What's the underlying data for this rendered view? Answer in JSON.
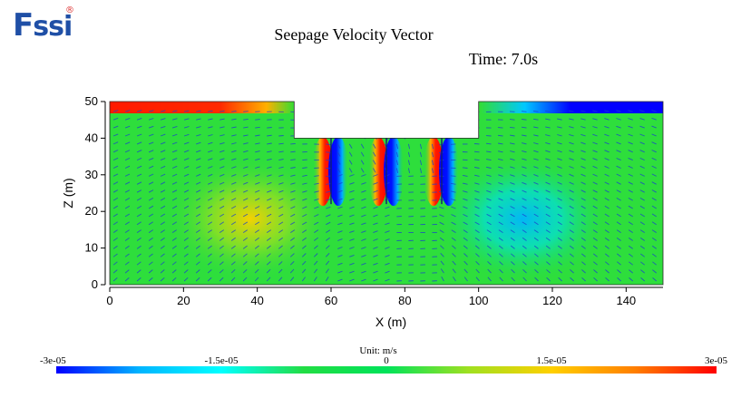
{
  "brand": {
    "logo_f": "F",
    "logo_ssi": "ssi",
    "logo_mark": "®"
  },
  "chart_data": {
    "type": "heatmap",
    "title": "Seepage Velocity Vector",
    "time_label": "Time: 7.0s",
    "xlabel": "X (m)",
    "ylabel": "Z (m)",
    "xlim": [
      0,
      150
    ],
    "ylim": [
      0,
      50
    ],
    "x_ticks": [
      0,
      20,
      40,
      60,
      80,
      100,
      120,
      140
    ],
    "y_ticks": [
      0,
      10,
      20,
      30,
      40,
      50
    ],
    "domain_outline": [
      [
        0,
        0
      ],
      [
        150,
        0
      ],
      [
        150,
        50
      ],
      [
        100,
        50
      ],
      [
        100,
        40
      ],
      [
        50,
        40
      ],
      [
        50,
        50
      ],
      [
        0,
        50
      ]
    ],
    "sheet_piles_x": [
      60,
      75,
      90
    ],
    "colorbar": {
      "unit": "Unit: m/s",
      "min": -3e-05,
      "max": 3e-05,
      "tick_labels": [
        "-3e-05",
        "-1.5e-05",
        "0",
        "1.5e-05",
        "3e-05"
      ],
      "tick_values": [
        -3e-05,
        -1.5e-05,
        0,
        1.5e-05,
        3e-05
      ],
      "colors": [
        "#0000ff",
        "#00b4ff",
        "#00ffff",
        "#22dd44",
        "#00e35a",
        "#a0e020",
        "#ffd000",
        "#ff8000",
        "#ff0000"
      ]
    }
  }
}
